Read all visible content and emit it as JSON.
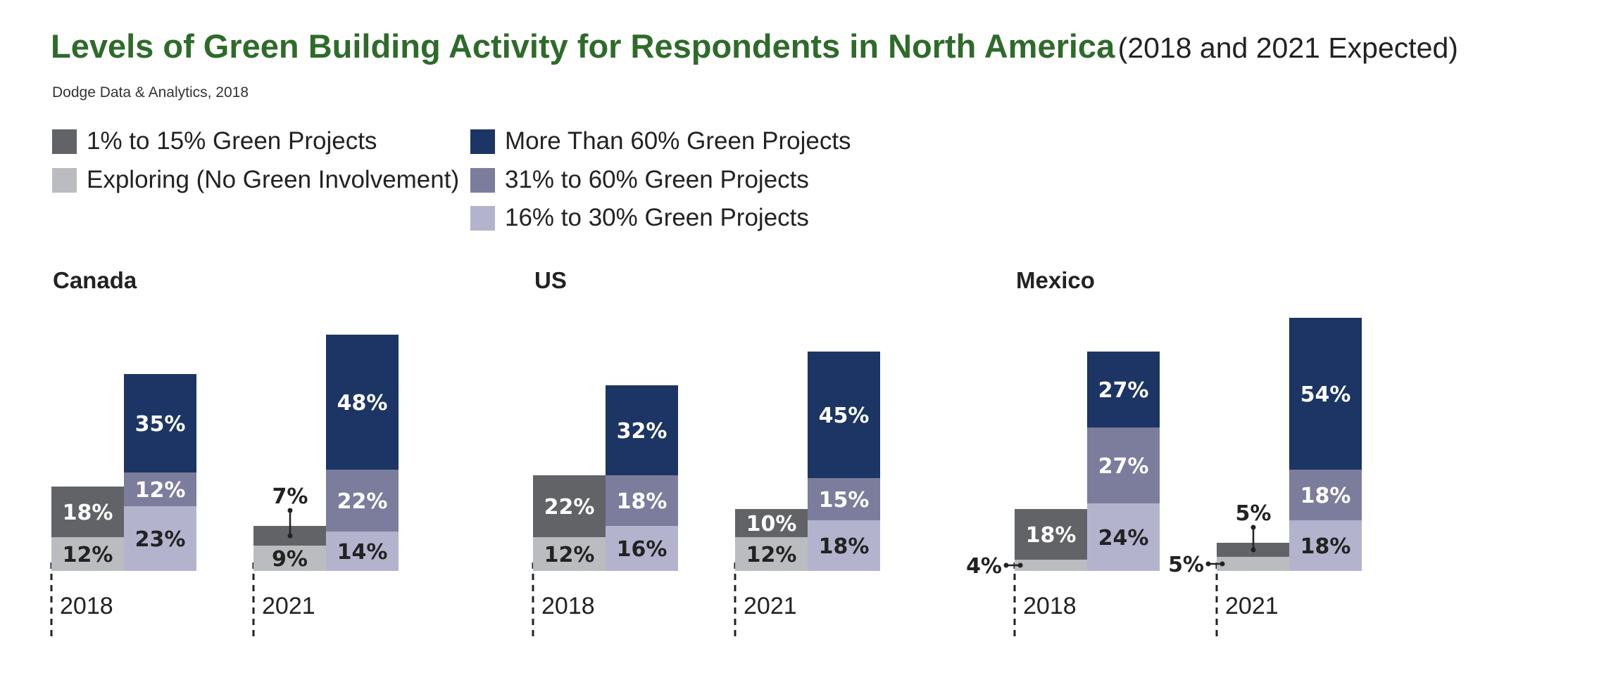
{
  "title": {
    "main": "Levels of Green Building Activity for Respondents in North America",
    "sub": "(2018 and 2021 Expected)"
  },
  "source": "Dodge Data & Analytics, 2018",
  "colors": {
    "exploring": "#bbbcbf",
    "low": "#626366",
    "mid_low": "#b4b3cd",
    "mid_high": "#7c7d9c",
    "high": "#1c3564",
    "title_green": "#2e6b2a"
  },
  "legend": [
    {
      "key": "low",
      "label": "1% to 15% Green Projects"
    },
    {
      "key": "exploring",
      "label": "Exploring (No Green Involvement)"
    },
    {
      "key": "high",
      "label": "More Than 60% Green Projects"
    },
    {
      "key": "mid_high",
      "label": "31% to 60% Green Projects"
    },
    {
      "key": "mid_low",
      "label": "16% to 30% Green Projects"
    }
  ],
  "chart_data": {
    "type": "bar",
    "stacking": "two adjacent stacked columns per year",
    "levels": [
      "Exploring (No Green Involvement)",
      "1% to 15% Green Projects",
      "16% to 30% Green Projects",
      "31% to 60% Green Projects",
      "More Than 60% Green Projects"
    ],
    "groups": [
      {
        "country": "Canada",
        "years": [
          {
            "year": "2018",
            "exploring": 12,
            "low": 18,
            "mid_low": 23,
            "mid_high": 12,
            "high": 35
          },
          {
            "year": "2021",
            "exploring": 9,
            "low": 7,
            "mid_low": 14,
            "mid_high": 22,
            "high": 48
          }
        ]
      },
      {
        "country": "US",
        "years": [
          {
            "year": "2018",
            "exploring": 12,
            "low": 22,
            "mid_low": 16,
            "mid_high": 18,
            "high": 32
          },
          {
            "year": "2021",
            "exploring": 12,
            "low": 10,
            "mid_low": 18,
            "mid_high": 15,
            "high": 45
          }
        ]
      },
      {
        "country": "Mexico",
        "years": [
          {
            "year": "2018",
            "exploring": 4,
            "low": 18,
            "mid_low": 24,
            "mid_high": 27,
            "high": 27
          },
          {
            "year": "2021",
            "exploring": 5,
            "low": 5,
            "mid_low": 18,
            "mid_high": 18,
            "high": 54
          }
        ]
      }
    ]
  }
}
